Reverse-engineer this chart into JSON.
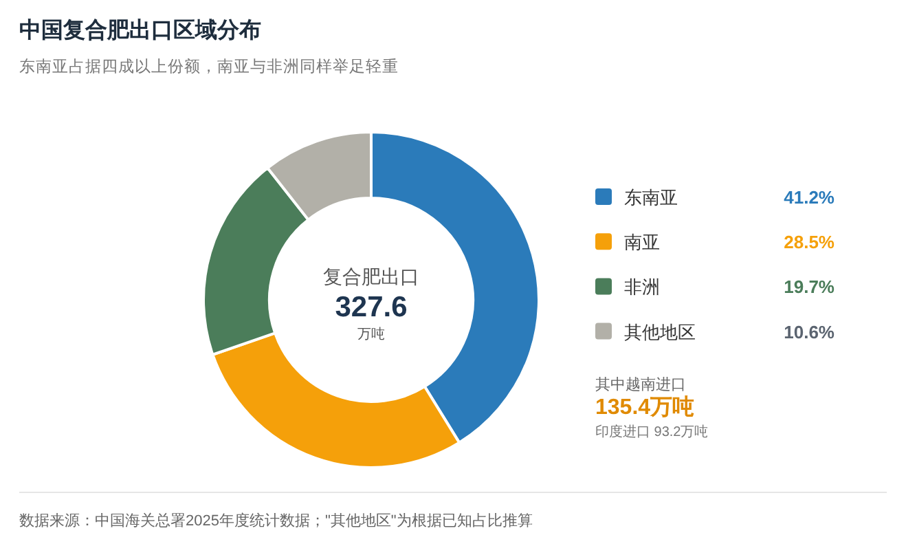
{
  "chart_data": {
    "type": "donut",
    "title": "中国复合肥出口区域分布",
    "subtitle": "东南亚占据四成以上份额，南亚与非洲同样举足轻重",
    "categories": [
      "东南亚",
      "南亚",
      "非洲",
      "其他地区"
    ],
    "values": [
      41.2,
      28.5,
      19.7,
      10.6
    ],
    "colors": [
      "#2b7bba",
      "#f5a00a",
      "#4b7d5a",
      "#b2b0a8"
    ],
    "value_labels": [
      "41.2%",
      "28.5%",
      "19.7%",
      "10.6%"
    ],
    "legend": "right",
    "annotations": [
      "复合肥出口",
      "327.6",
      "万吨",
      "其中越南进口",
      "135.4万吨",
      "印度进口 93.2万吨",
      "数据来源：中国海关总署2025年度统计数据；\"其他地区\"为根据已知占比推算"
    ]
  }
}
